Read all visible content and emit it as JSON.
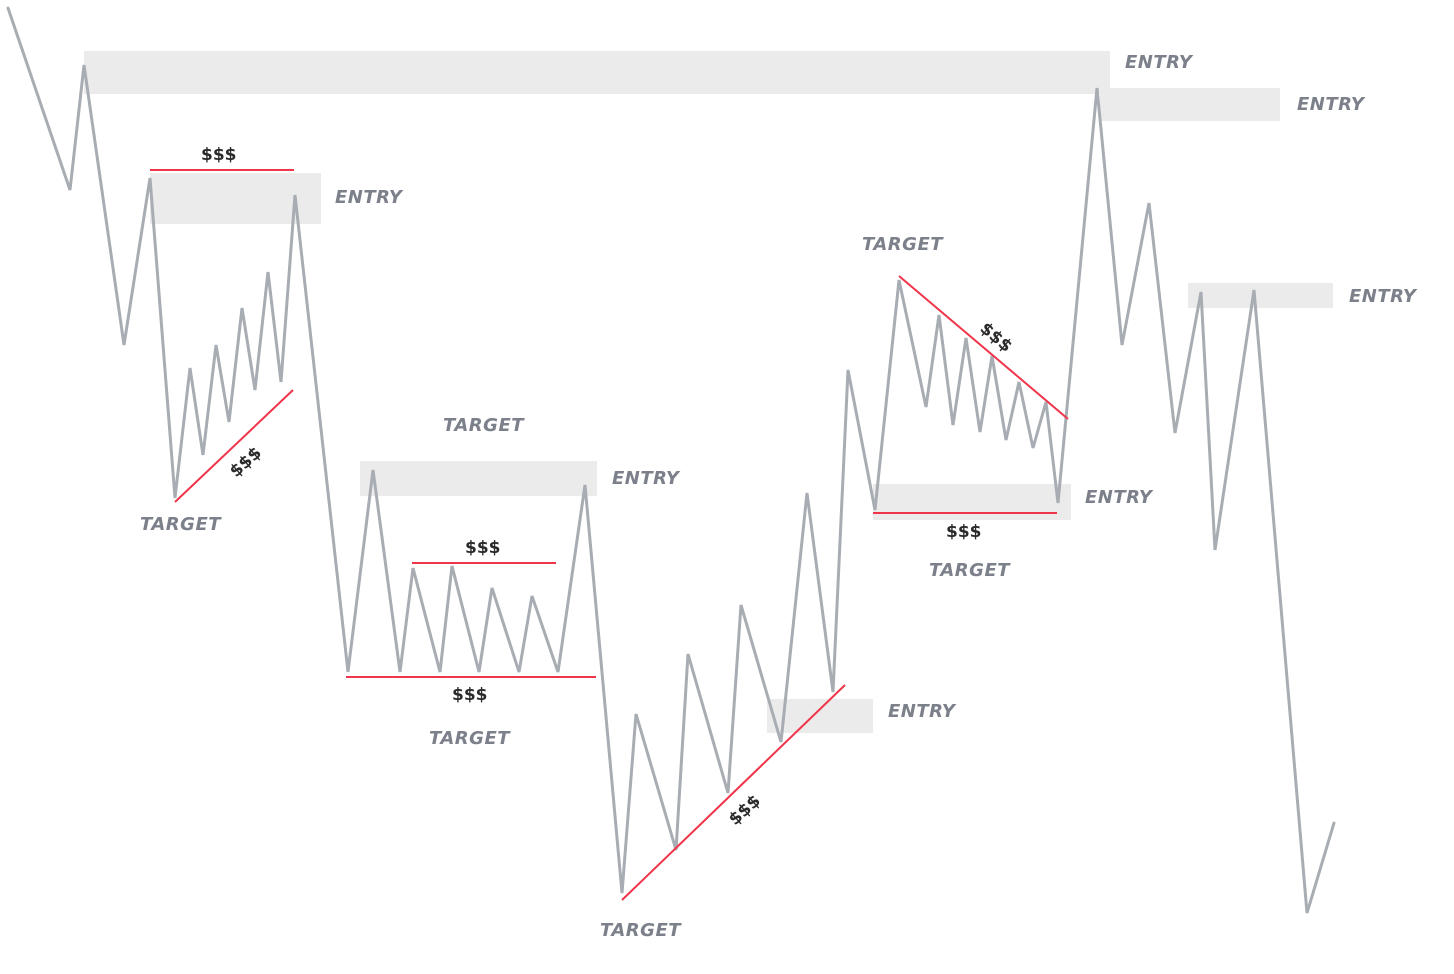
{
  "labels": {
    "entry": "ENTRY",
    "target": "TARGET",
    "liquidity": "$$$"
  },
  "colors": {
    "price_line": "#a8acb3",
    "liquidity_line": "#f0344a",
    "zone_fill": "#ebebeb",
    "label_text": "#7c808a",
    "liquidity_text": "#2a2a2a",
    "background": "#ffffff"
  }
}
